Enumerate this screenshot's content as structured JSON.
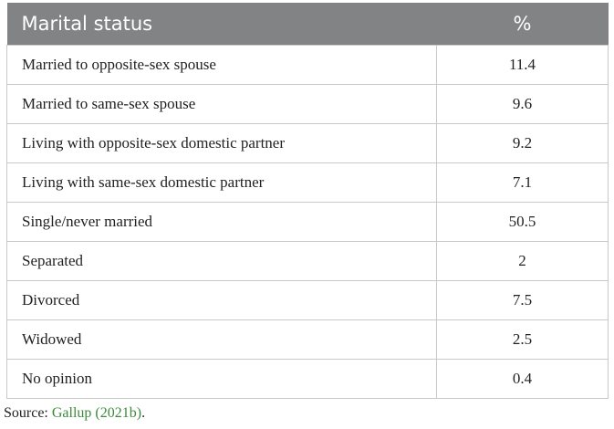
{
  "table": {
    "header": [
      "Marital status",
      "%"
    ],
    "rows": [
      [
        "Married to opposite-sex spouse",
        "11.4"
      ],
      [
        "Married to same-sex spouse",
        "9.6"
      ],
      [
        "Living with opposite-sex domestic partner",
        "9.2"
      ],
      [
        "Living with same-sex domestic partner",
        "7.1"
      ],
      [
        "Single/never married",
        "50.5"
      ],
      [
        "Separated",
        "2"
      ],
      [
        "Divorced",
        "7.5"
      ],
      [
        "Widowed",
        "2.5"
      ],
      [
        "No opinion",
        "0.4"
      ]
    ]
  },
  "source": {
    "prefix": "Source:",
    "link": "Gallup (2021b)",
    "suffix": "."
  }
}
